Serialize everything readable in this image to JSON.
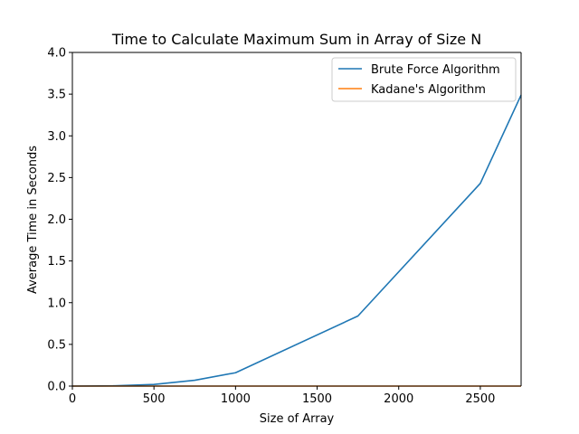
{
  "chart_data": {
    "type": "line",
    "title": "Time to Calculate Maximum Sum in Array of Size N",
    "xlabel": "Size of Array",
    "ylabel": "Average Time in Seconds",
    "xlim": [
      0,
      2750
    ],
    "ylim": [
      0,
      4.0
    ],
    "xticks": [
      0,
      500,
      1000,
      1500,
      2000,
      2500
    ],
    "xtick_labels": [
      "0",
      "500",
      "1000",
      "1500",
      "2000",
      "2500"
    ],
    "yticks": [
      0,
      0.5,
      1.0,
      1.5,
      2.0,
      2.5,
      3.0,
      3.5,
      4.0
    ],
    "ytick_labels": [
      "0.0",
      "0.5",
      "1.0",
      "1.5",
      "2.0",
      "2.5",
      "3.0",
      "3.5",
      "4.0"
    ],
    "grid": false,
    "legend_position": "top-right",
    "x": [
      0,
      250,
      500,
      750,
      1000,
      1750,
      2500,
      2750
    ],
    "series": [
      {
        "name": "Brute Force Algorithm",
        "color": "#1f77b4",
        "values": [
          0.0,
          0.003,
          0.02,
          0.07,
          0.16,
          0.84,
          2.43,
          3.49
        ]
      },
      {
        "name": "Kadane's Algorithm",
        "color": "#ff7f0e",
        "values": [
          0.0,
          0.0,
          0.0,
          0.0,
          0.0,
          0.0,
          0.0,
          0.0
        ]
      }
    ]
  }
}
